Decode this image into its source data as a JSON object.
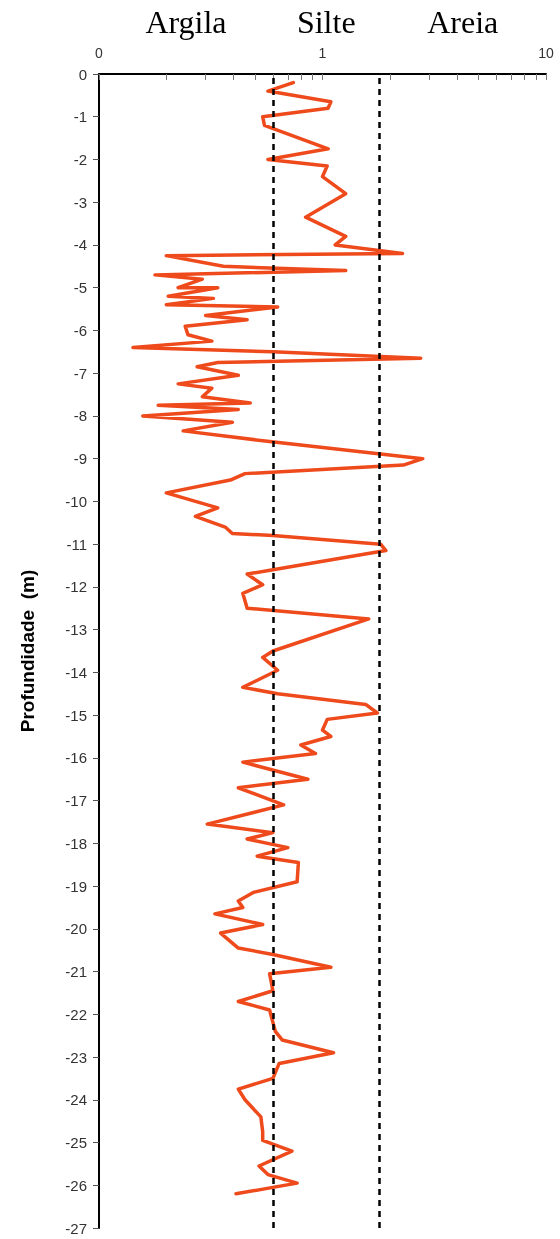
{
  "chart_data": {
    "type": "line",
    "ylabel": "Profundidade  (m)",
    "annotations": [
      "Argila",
      "Silte",
      "Areia"
    ],
    "log": "x",
    "grid": false,
    "marker": "none",
    "line_style": "solid",
    "xlim": [
      0.1,
      10
    ],
    "ylim": [
      -27,
      0
    ],
    "xticks": [
      {
        "value": 0.1,
        "label": "0"
      },
      {
        "value": 0.2,
        "label": null
      },
      {
        "value": 0.3,
        "label": null
      },
      {
        "value": 0.4,
        "label": null
      },
      {
        "value": 0.5,
        "label": null
      },
      {
        "value": 0.6,
        "label": null
      },
      {
        "value": 0.7,
        "label": null
      },
      {
        "value": 0.8,
        "label": null
      },
      {
        "value": 0.9,
        "label": null
      },
      1,
      {
        "value": 2,
        "label": null
      },
      {
        "value": 3,
        "label": null
      },
      {
        "value": 4,
        "label": null
      },
      {
        "value": 5,
        "label": null
      },
      {
        "value": 6,
        "label": null
      },
      {
        "value": 7,
        "label": null
      },
      {
        "value": 8,
        "label": null
      },
      {
        "value": 9,
        "label": null
      },
      10
    ],
    "yticks": [
      0,
      -1,
      -2,
      -3,
      -4,
      -5,
      -6,
      -7,
      -8,
      -9,
      -10,
      -11,
      -12,
      -13,
      -14,
      -15,
      -16,
      -17,
      -18,
      -19,
      -20,
      -21,
      -22,
      -23,
      -24,
      -25,
      -26,
      -27
    ],
    "ref_lines": [
      {
        "axis": "x",
        "value": 0.6,
        "color": "#000000",
        "line_style": "dashed"
      },
      {
        "axis": "x",
        "value": 1.8,
        "color": "#000000",
        "line_style": "dashed"
      }
    ],
    "series": [
      {
        "color": "#ee4a1c",
        "x": [
          0.74,
          0.57,
          1.09,
          1.06,
          0.54,
          0.55,
          1.06,
          0.57,
          1.05,
          1.0,
          1.27,
          0.84,
          1.27,
          1.14,
          2.28,
          0.2,
          0.36,
          1.27,
          0.178,
          0.29,
          0.226,
          0.34,
          0.204,
          0.325,
          0.2,
          0.63,
          0.3,
          0.46,
          0.243,
          0.25,
          0.32,
          0.142,
          0.6,
          2.75,
          0.34,
          0.275,
          0.42,
          0.226,
          0.32,
          0.29,
          0.475,
          0.184,
          0.42,
          0.157,
          0.395,
          0.238,
          0.58,
          2.81,
          2.3,
          0.45,
          0.387,
          0.2,
          0.34,
          0.27,
          0.367,
          0.395,
          0.6,
          1.82,
          1.92,
          0.6,
          0.46,
          0.54,
          0.44,
          0.46,
          1.61,
          0.6,
          0.54,
          0.63,
          0.44,
          0.63,
          1.56,
          1.76,
          1.05,
          1.0,
          1.09,
          0.8,
          0.93,
          0.44,
          0.86,
          0.42,
          0.67,
          0.305,
          0.6,
          0.46,
          0.7,
          0.51,
          0.78,
          0.77,
          0.49,
          0.42,
          0.44,
          0.33,
          0.54,
          0.35,
          0.42,
          0.6,
          1.09,
          0.58,
          0.6,
          0.42,
          0.58,
          0.615,
          0.66,
          1.12,
          0.64,
          0.6,
          0.42,
          0.45,
          0.53,
          0.54,
          0.54,
          0.73,
          0.52,
          0.57,
          0.77,
          0.6,
          0.41
        ],
        "values": [
          -0.2,
          -0.4,
          -0.65,
          -0.8,
          -1.0,
          -1.2,
          -1.75,
          -2.0,
          -2.15,
          -2.4,
          -2.8,
          -3.35,
          -3.8,
          -4.0,
          -4.2,
          -4.25,
          -4.5,
          -4.6,
          -4.7,
          -4.8,
          -5.0,
          -5.0,
          -5.2,
          -5.25,
          -5.4,
          -5.45,
          -5.65,
          -5.75,
          -5.9,
          -6.1,
          -6.25,
          -6.4,
          -6.5,
          -6.65,
          -6.75,
          -6.85,
          -7.05,
          -7.25,
          -7.35,
          -7.55,
          -7.7,
          -7.75,
          -7.85,
          -8.0,
          -8.15,
          -8.35,
          -8.6,
          -9.0,
          -9.15,
          -9.35,
          -9.5,
          -9.8,
          -10.15,
          -10.35,
          -10.6,
          -10.75,
          -10.8,
          -11.0,
          -11.15,
          -11.6,
          -11.7,
          -11.95,
          -12.15,
          -12.5,
          -12.75,
          -13.5,
          -13.65,
          -13.95,
          -14.35,
          -14.5,
          -14.75,
          -14.95,
          -15.1,
          -15.35,
          -15.5,
          -15.7,
          -15.9,
          -16.1,
          -16.5,
          -16.7,
          -17.1,
          -17.55,
          -17.75,
          -17.9,
          -18.1,
          -18.3,
          -18.45,
          -18.9,
          -19.15,
          -19.35,
          -19.5,
          -19.65,
          -19.9,
          -20.1,
          -20.45,
          -20.6,
          -20.9,
          -21.05,
          -21.45,
          -21.7,
          -21.9,
          -22.4,
          -22.6,
          -22.9,
          -23.15,
          -23.5,
          -23.75,
          -24.0,
          -24.4,
          -24.75,
          -24.95,
          -25.2,
          -25.55,
          -25.75,
          -25.95,
          -26.05,
          -26.2
        ]
      }
    ]
  }
}
